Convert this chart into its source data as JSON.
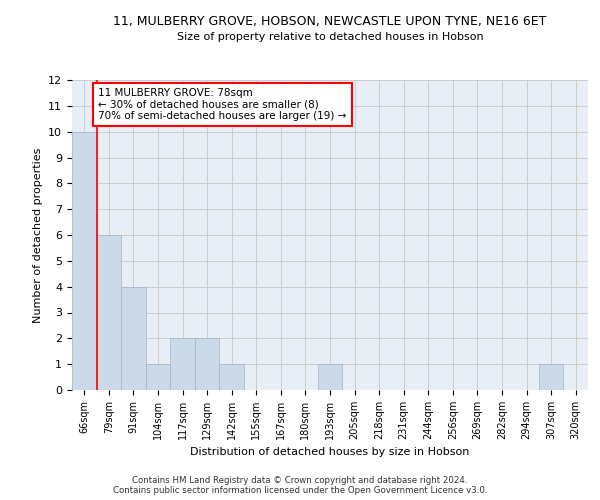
{
  "title_line1": "11, MULBERRY GROVE, HOBSON, NEWCASTLE UPON TYNE, NE16 6ET",
  "title_line2": "Size of property relative to detached houses in Hobson",
  "xlabel": "Distribution of detached houses by size in Hobson",
  "ylabel": "Number of detached properties",
  "footer_line1": "Contains HM Land Registry data © Crown copyright and database right 2024.",
  "footer_line2": "Contains public sector information licensed under the Open Government Licence v3.0.",
  "categories": [
    "66sqm",
    "79sqm",
    "91sqm",
    "104sqm",
    "117sqm",
    "129sqm",
    "142sqm",
    "155sqm",
    "167sqm",
    "180sqm",
    "193sqm",
    "205sqm",
    "218sqm",
    "231sqm",
    "244sqm",
    "256sqm",
    "269sqm",
    "282sqm",
    "294sqm",
    "307sqm",
    "320sqm"
  ],
  "values": [
    10,
    6,
    4,
    1,
    2,
    2,
    1,
    0,
    0,
    0,
    1,
    0,
    0,
    0,
    0,
    0,
    0,
    0,
    0,
    1,
    0
  ],
  "bar_color": "#ccd9e8",
  "bar_edge_color": "#a0b4c8",
  "annotation_text_line1": "11 MULBERRY GROVE: 78sqm",
  "annotation_text_line2": "← 30% of detached houses are smaller (8)",
  "annotation_text_line3": "70% of semi-detached houses are larger (19) →",
  "annotation_box_color": "white",
  "annotation_box_edge": "red",
  "ylim": [
    0,
    12
  ],
  "yticks": [
    0,
    1,
    2,
    3,
    4,
    5,
    6,
    7,
    8,
    9,
    10,
    11,
    12
  ],
  "grid_color": "#cccccc",
  "bg_color": "#e8eef5"
}
